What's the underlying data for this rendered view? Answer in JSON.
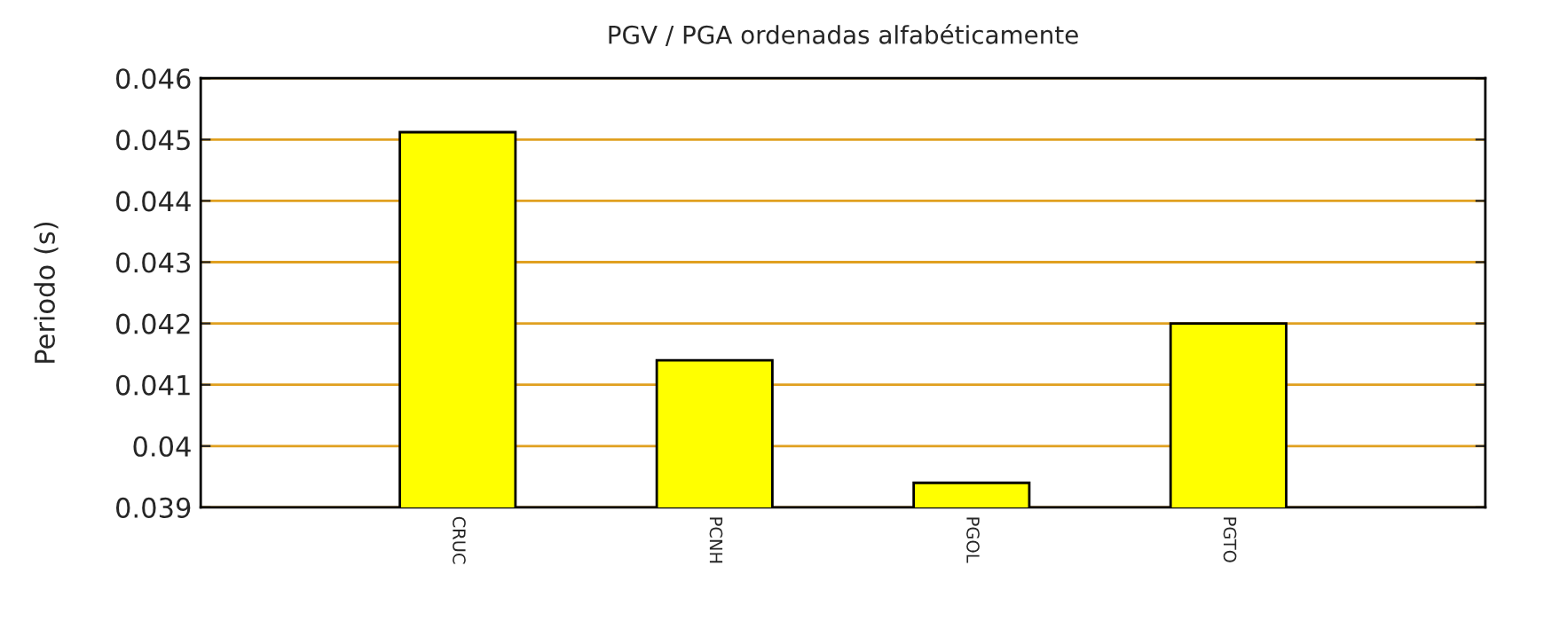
{
  "chart_data": {
    "type": "bar",
    "title": "PGV / PGA ordenadas alfabéticamente",
    "ylabel": "Periodo (s)",
    "categories": [
      "CRUC",
      "PCNH",
      "PGOL",
      "PGTO"
    ],
    "values": [
      0.04512,
      0.0414,
      0.0394,
      0.042
    ],
    "color": "#ffff00",
    "ylim": [
      0.039,
      0.046
    ],
    "yticks": [
      0.039,
      0.04,
      0.041,
      0.042,
      0.043,
      0.044,
      0.045,
      0.046
    ],
    "grid": "y"
  }
}
